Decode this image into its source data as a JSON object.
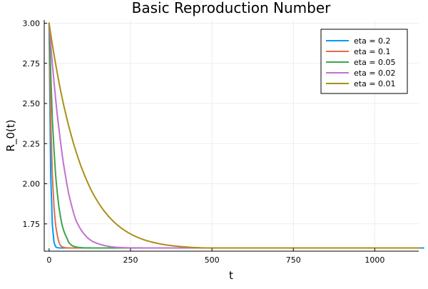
{
  "chart_data": {
    "type": "line",
    "title": "Basic Reproduction Number",
    "xlabel": "t",
    "ylabel": "R_0(t)",
    "xlim": [
      -15,
      1135
    ],
    "ylim": [
      1.58,
      3.02
    ],
    "xticks": [
      0,
      250,
      500,
      750,
      1000
    ],
    "xtick_labels": [
      "0",
      "250",
      "500",
      "750",
      "1000"
    ],
    "yticks": [
      1.75,
      2.0,
      2.25,
      2.5,
      2.75,
      3.0
    ],
    "ytick_labels": [
      "1.75",
      "2.00",
      "2.25",
      "2.50",
      "2.75",
      "3.00"
    ],
    "grid": true,
    "legend_position": "top-right",
    "x_range": [
      0,
      1100
    ],
    "sample_step": 5,
    "series": [
      {
        "name": "eta = 0.2",
        "color": "#009af9",
        "values": [
          3.0,
          2.052,
          1.7413,
          1.6349,
          1.6074,
          1.6019,
          1.6004,
          1.6001,
          1.6,
          1.6,
          1.6,
          1.6,
          1.6,
          1.6,
          1.6,
          1.6,
          1.6,
          1.6,
          1.6,
          1.6,
          1.6,
          1.6,
          1.6,
          1.6,
          1.6,
          1.6,
          1.6,
          1.6,
          1.6,
          1.6,
          1.6,
          1.6,
          1.6,
          1.6,
          1.6,
          1.6,
          1.6,
          1.6,
          1.6,
          1.6,
          1.6,
          1.6,
          1.6,
          1.6,
          1.6,
          1.6,
          1.6,
          1.6,
          1.6,
          1.6,
          1.6,
          1.6,
          1.6,
          1.6,
          1.6,
          1.6,
          1.6,
          1.6,
          1.6,
          1.6,
          1.6,
          1.6,
          1.6,
          1.6,
          1.6,
          1.6,
          1.6,
          1.6,
          1.6,
          1.6,
          1.6,
          1.6,
          1.6,
          1.6,
          1.6,
          1.6,
          1.6,
          1.6,
          1.6,
          1.6,
          1.6,
          1.6,
          1.6,
          1.6,
          1.6,
          1.6,
          1.6,
          1.6,
          1.6,
          1.6,
          1.6,
          1.6,
          1.6,
          1.6,
          1.6,
          1.6,
          1.6,
          1.6,
          1.6,
          1.6,
          1.6,
          1.6,
          1.6,
          1.6,
          1.6,
          1.6,
          1.6,
          1.6,
          1.6,
          1.6,
          1.6,
          1.6,
          1.6,
          1.6,
          1.6,
          1.6,
          1.6,
          1.6,
          1.6,
          1.6,
          1.6,
          1.6,
          1.6,
          1.6,
          1.6,
          1.6,
          1.6,
          1.6,
          1.6,
          1.6,
          1.6,
          1.6,
          1.6,
          1.6,
          1.6,
          1.6,
          1.6,
          1.6,
          1.6,
          1.6,
          1.6,
          1.6,
          1.6,
          1.6,
          1.6,
          1.6,
          1.6,
          1.6,
          1.6,
          1.6,
          1.6,
          1.6,
          1.6,
          1.6,
          1.6,
          1.6,
          1.6,
          1.6,
          1.6,
          1.6,
          1.6,
          1.6,
          1.6,
          1.6,
          1.6,
          1.6,
          1.6,
          1.6,
          1.6,
          1.6,
          1.6,
          1.6,
          1.6,
          1.6,
          1.6,
          1.6,
          1.6,
          1.6,
          1.6,
          1.6,
          1.6,
          1.6,
          1.6,
          1.6,
          1.6,
          1.6,
          1.6,
          1.6,
          1.6,
          1.6,
          1.6,
          1.6,
          1.6,
          1.6,
          1.6,
          1.6,
          1.6,
          1.6,
          1.6,
          1.6,
          1.6,
          1.6,
          1.6,
          1.6,
          1.6,
          1.6,
          1.6,
          1.6,
          1.6,
          1.6,
          1.6,
          1.6,
          1.6,
          1.6,
          1.6,
          1.6,
          1.6,
          1.6,
          1.6,
          1.6,
          1.6,
          1.6,
          1.6,
          1.6,
          1.6,
          1.6,
          1.6,
          1.6,
          1.6,
          1.6,
          1.6
        ]
      },
      {
        "name": "eta = 0.1",
        "color": "#e26f46",
        "values": [
          3.0,
          2.4,
          2.052,
          1.8565,
          1.7413,
          1.6809,
          1.6349,
          1.6152,
          1.6074,
          1.6036,
          1.6019,
          1.6008,
          1.6004,
          1.6002,
          1.6001,
          1.6,
          1.6,
          1.6,
          1.6,
          1.6,
          1.6,
          1.6,
          1.6,
          1.6,
          1.6,
          1.6,
          1.6,
          1.6,
          1.6,
          1.6,
          1.6,
          1.6,
          1.6,
          1.6,
          1.6,
          1.6,
          1.6,
          1.6,
          1.6,
          1.6,
          1.6,
          1.6,
          1.6,
          1.6,
          1.6,
          1.6,
          1.6,
          1.6,
          1.6,
          1.6,
          1.6,
          1.6,
          1.6,
          1.6,
          1.6,
          1.6,
          1.6,
          1.6,
          1.6,
          1.6,
          1.6,
          1.6,
          1.6,
          1.6,
          1.6,
          1.6,
          1.6,
          1.6,
          1.6,
          1.6,
          1.6,
          1.6,
          1.6,
          1.6,
          1.6,
          1.6,
          1.6,
          1.6,
          1.6,
          1.6,
          1.6,
          1.6,
          1.6,
          1.6,
          1.6,
          1.6,
          1.6,
          1.6,
          1.6,
          1.6,
          1.6,
          1.6,
          1.6,
          1.6,
          1.6,
          1.6,
          1.6,
          1.6,
          1.6,
          1.6,
          1.6,
          1.6,
          1.6,
          1.6,
          1.6,
          1.6,
          1.6,
          1.6,
          1.6,
          1.6,
          1.6,
          1.6,
          1.6,
          1.6,
          1.6,
          1.6,
          1.6,
          1.6,
          1.6,
          1.6,
          1.6,
          1.6,
          1.6,
          1.6,
          1.6,
          1.6,
          1.6,
          1.6,
          1.6,
          1.6,
          1.6,
          1.6,
          1.6,
          1.6,
          1.6,
          1.6,
          1.6,
          1.6,
          1.6,
          1.6,
          1.6,
          1.6,
          1.6,
          1.6,
          1.6,
          1.6,
          1.6,
          1.6,
          1.6,
          1.6,
          1.6,
          1.6,
          1.6,
          1.6,
          1.6,
          1.6,
          1.6,
          1.6,
          1.6,
          1.6,
          1.6,
          1.6,
          1.6,
          1.6,
          1.6,
          1.6,
          1.6,
          1.6,
          1.6,
          1.6,
          1.6,
          1.6,
          1.6,
          1.6,
          1.6,
          1.6,
          1.6,
          1.6,
          1.6,
          1.6,
          1.6,
          1.6,
          1.6,
          1.6,
          1.6,
          1.6,
          1.6,
          1.6,
          1.6,
          1.6,
          1.6,
          1.6,
          1.6,
          1.6,
          1.6,
          1.6,
          1.6,
          1.6,
          1.6,
          1.6,
          1.6,
          1.6,
          1.6,
          1.6,
          1.6,
          1.6,
          1.6,
          1.6,
          1.6,
          1.6,
          1.6,
          1.6,
          1.6,
          1.6,
          1.6,
          1.6,
          1.6,
          1.6,
          1.6,
          1.6,
          1.6,
          1.6,
          1.6,
          1.6,
          1.6,
          1.6,
          1.6,
          1.6,
          1.6
        ]
      },
      {
        "name": "eta = 0.05",
        "color": "#3da44d",
        "values": [
          3.0,
          2.69,
          2.4,
          2.214,
          2.052,
          1.9445,
          1.8565,
          1.7926,
          1.7413,
          1.7065,
          1.6809,
          1.6605,
          1.6349,
          1.6246,
          1.6152,
          1.6109,
          1.6074,
          1.6053,
          1.6036,
          1.6026,
          1.6019,
          1.6013,
          1.6008,
          1.6006,
          1.6004,
          1.6003,
          1.6002,
          1.6001,
          1.6001,
          1.6001,
          1.6,
          1.6,
          1.6,
          1.6,
          1.6,
          1.6,
          1.6,
          1.6,
          1.6,
          1.6,
          1.6,
          1.6,
          1.6,
          1.6,
          1.6,
          1.6,
          1.6,
          1.6,
          1.6,
          1.6,
          1.6,
          1.6,
          1.6,
          1.6,
          1.6,
          1.6,
          1.6,
          1.6,
          1.6,
          1.6,
          1.6,
          1.6,
          1.6,
          1.6,
          1.6,
          1.6,
          1.6,
          1.6,
          1.6,
          1.6,
          1.6,
          1.6,
          1.6,
          1.6,
          1.6,
          1.6,
          1.6,
          1.6,
          1.6,
          1.6,
          1.6,
          1.6,
          1.6,
          1.6,
          1.6,
          1.6,
          1.6,
          1.6,
          1.6,
          1.6,
          1.6,
          1.6,
          1.6,
          1.6,
          1.6,
          1.6,
          1.6,
          1.6,
          1.6,
          1.6,
          1.6,
          1.6,
          1.6,
          1.6,
          1.6,
          1.6,
          1.6,
          1.6,
          1.6,
          1.6,
          1.6,
          1.6,
          1.6,
          1.6,
          1.6,
          1.6,
          1.6,
          1.6,
          1.6,
          1.6,
          1.6,
          1.6,
          1.6,
          1.6,
          1.6,
          1.6,
          1.6,
          1.6,
          1.6,
          1.6,
          1.6,
          1.6,
          1.6,
          1.6,
          1.6,
          1.6,
          1.6,
          1.6,
          1.6,
          1.6,
          1.6,
          1.6,
          1.6,
          1.6,
          1.6,
          1.6,
          1.6,
          1.6,
          1.6,
          1.6,
          1.6,
          1.6,
          1.6,
          1.6,
          1.6,
          1.6,
          1.6,
          1.6,
          1.6,
          1.6,
          1.6,
          1.6,
          1.6,
          1.6,
          1.6,
          1.6,
          1.6,
          1.6,
          1.6,
          1.6,
          1.6,
          1.6,
          1.6,
          1.6,
          1.6,
          1.6,
          1.6,
          1.6,
          1.6,
          1.6,
          1.6,
          1.6,
          1.6,
          1.6,
          1.6,
          1.6,
          1.6,
          1.6,
          1.6,
          1.6,
          1.6,
          1.6,
          1.6,
          1.6,
          1.6,
          1.6,
          1.6,
          1.6,
          1.6,
          1.6,
          1.6,
          1.6,
          1.6,
          1.6,
          1.6,
          1.6,
          1.6,
          1.6,
          1.6,
          1.6,
          1.6,
          1.6,
          1.6,
          1.6,
          1.6,
          1.6,
          1.6,
          1.6,
          1.6,
          1.6,
          1.6,
          1.6,
          1.6,
          1.6,
          1.6,
          1.6,
          1.6,
          1.6,
          1.6
        ]
      },
      {
        "name": "eta = 0.02",
        "color": "#c271d2",
        "values": [
          3.0,
          2.8688,
          2.7467,
          2.6336,
          2.529,
          2.4296,
          2.3443,
          2.2604,
          2.1828,
          2.1134,
          2.052,
          1.9932,
          1.9399,
          1.8962,
          1.8565,
          1.8193,
          1.7855,
          1.7604,
          1.7413,
          1.7227,
          1.7066,
          1.6933,
          1.6809,
          1.6693,
          1.6602,
          1.6523,
          1.6451,
          1.6387,
          1.6349,
          1.6308,
          1.6269,
          1.6232,
          1.6206,
          1.6178,
          1.6152,
          1.6129,
          1.6109,
          1.6093,
          1.6074,
          1.6066,
          1.6053,
          1.6046,
          1.6036,
          1.6032,
          1.6026,
          1.6021,
          1.6019,
          1.6015,
          1.6013,
          1.6011,
          1.6008,
          1.6007,
          1.6006,
          1.6005,
          1.6004,
          1.6004,
          1.6003,
          1.6003,
          1.6002,
          1.6002,
          1.6002,
          1.6001,
          1.6001,
          1.6001,
          1.6001,
          1.6001,
          1.6001,
          1.6001,
          1.6,
          1.6,
          1.6,
          1.6,
          1.6,
          1.6,
          1.6,
          1.6,
          1.6,
          1.6,
          1.6,
          1.6,
          1.6,
          1.6,
          1.6,
          1.6,
          1.6,
          1.6,
          1.6,
          1.6,
          1.6,
          1.6,
          1.6,
          1.6,
          1.6,
          1.6,
          1.6,
          1.6,
          1.6,
          1.6,
          1.6,
          1.6,
          1.6,
          1.6,
          1.6,
          1.6,
          1.6,
          1.6,
          1.6,
          1.6,
          1.6,
          1.6,
          1.6,
          1.6,
          1.6,
          1.6,
          1.6,
          1.6,
          1.6,
          1.6,
          1.6,
          1.6,
          1.6,
          1.6,
          1.6,
          1.6,
          1.6,
          1.6,
          1.6,
          1.6,
          1.6,
          1.6,
          1.6,
          1.6,
          1.6,
          1.6,
          1.6,
          1.6,
          1.6,
          1.6,
          1.6,
          1.6,
          1.6,
          1.6,
          1.6,
          1.6,
          1.6,
          1.6,
          1.6,
          1.6,
          1.6,
          1.6,
          1.6,
          1.6,
          1.6,
          1.6,
          1.6,
          1.6,
          1.6,
          1.6,
          1.6,
          1.6,
          1.6,
          1.6,
          1.6,
          1.6,
          1.6,
          1.6,
          1.6,
          1.6,
          1.6,
          1.6,
          1.6,
          1.6,
          1.6,
          1.6,
          1.6,
          1.6,
          1.6,
          1.6,
          1.6,
          1.6,
          1.6,
          1.6,
          1.6,
          1.6,
          1.6,
          1.6,
          1.6,
          1.6,
          1.6,
          1.6,
          1.6,
          1.6,
          1.6,
          1.6,
          1.6,
          1.6,
          1.6,
          1.6,
          1.6,
          1.6,
          1.6,
          1.6,
          1.6,
          1.6,
          1.6,
          1.6,
          1.6,
          1.6,
          1.6,
          1.6,
          1.6,
          1.6,
          1.6,
          1.6,
          1.6,
          1.6,
          1.6,
          1.6,
          1.6,
          1.6,
          1.6,
          1.6,
          1.6
        ]
      },
      {
        "name": "eta = 0.01",
        "color": "#ac8e18",
        "values": [
          3.0,
          2.9317,
          2.8668,
          2.8048,
          2.7464,
          2.6895,
          2.6345,
          2.5821,
          2.5339,
          2.4873,
          2.4444,
          2.4015,
          2.3606,
          2.3232,
          2.2864,
          2.25,
          2.2178,
          2.1861,
          2.1555,
          2.1257,
          2.0984,
          2.0727,
          2.0467,
          2.0238,
          2.0,
          1.9781,
          1.9569,
          1.9378,
          1.9199,
          1.9027,
          1.8862,
          1.8706,
          1.8554,
          1.8413,
          1.8279,
          1.8154,
          1.8031,
          1.7915,
          1.7807,
          1.7706,
          1.7608,
          1.7516,
          1.7429,
          1.7345,
          1.7265,
          1.7191,
          1.7119,
          1.7053,
          1.6989,
          1.693,
          1.6873,
          1.682,
          1.677,
          1.6722,
          1.6677,
          1.6634,
          1.6594,
          1.6556,
          1.6521,
          1.6487,
          1.6456,
          1.6426,
          1.6398,
          1.6371,
          1.6346,
          1.6322,
          1.6299,
          1.6278,
          1.6258,
          1.6239,
          1.6222,
          1.6205,
          1.6189,
          1.6175,
          1.6161,
          1.6148,
          1.6135,
          1.6124,
          1.6113,
          1.6103,
          1.6093,
          1.6084,
          1.6076,
          1.6068,
          1.606,
          1.6053,
          1.6047,
          1.6041,
          1.6035,
          1.603,
          1.6025,
          1.602,
          1.6016,
          1.6012,
          1.6008,
          1.6005,
          1.6002,
          1.6,
          1.6,
          1.6,
          1.6,
          1.6,
          1.6,
          1.6,
          1.6,
          1.6,
          1.6,
          1.6,
          1.6,
          1.6,
          1.6,
          1.6,
          1.6,
          1.6,
          1.6,
          1.6,
          1.6,
          1.6,
          1.6,
          1.6,
          1.6,
          1.6,
          1.6,
          1.6,
          1.6,
          1.6,
          1.6,
          1.6,
          1.6,
          1.6,
          1.6,
          1.6,
          1.6,
          1.6,
          1.6,
          1.6,
          1.6,
          1.6,
          1.6,
          1.6,
          1.6,
          1.6,
          1.6,
          1.6,
          1.6,
          1.6,
          1.6,
          1.6,
          1.6,
          1.6,
          1.6,
          1.6,
          1.6,
          1.6,
          1.6,
          1.6,
          1.6,
          1.6,
          1.6,
          1.6,
          1.6,
          1.6,
          1.6,
          1.6,
          1.6,
          1.6,
          1.6,
          1.6,
          1.6,
          1.6,
          1.6,
          1.6,
          1.6,
          1.6,
          1.6,
          1.6,
          1.6,
          1.6,
          1.6,
          1.6,
          1.6,
          1.6,
          1.6,
          1.6,
          1.6,
          1.6,
          1.6,
          1.6,
          1.6,
          1.6,
          1.6,
          1.6,
          1.6,
          1.6,
          1.6,
          1.6,
          1.6,
          1.6,
          1.6,
          1.6,
          1.6,
          1.6,
          1.6,
          1.6,
          1.6,
          1.6,
          1.6,
          1.6,
          1.6,
          1.6,
          1.6,
          1.6,
          1.6,
          1.6,
          1.6,
          1.6,
          1.6,
          1.6,
          1.6,
          1.6,
          1.6,
          1.6,
          1.6,
          1.6,
          1.6,
          1.6,
          1.6,
          1.6,
          1.6
        ]
      }
    ]
  }
}
